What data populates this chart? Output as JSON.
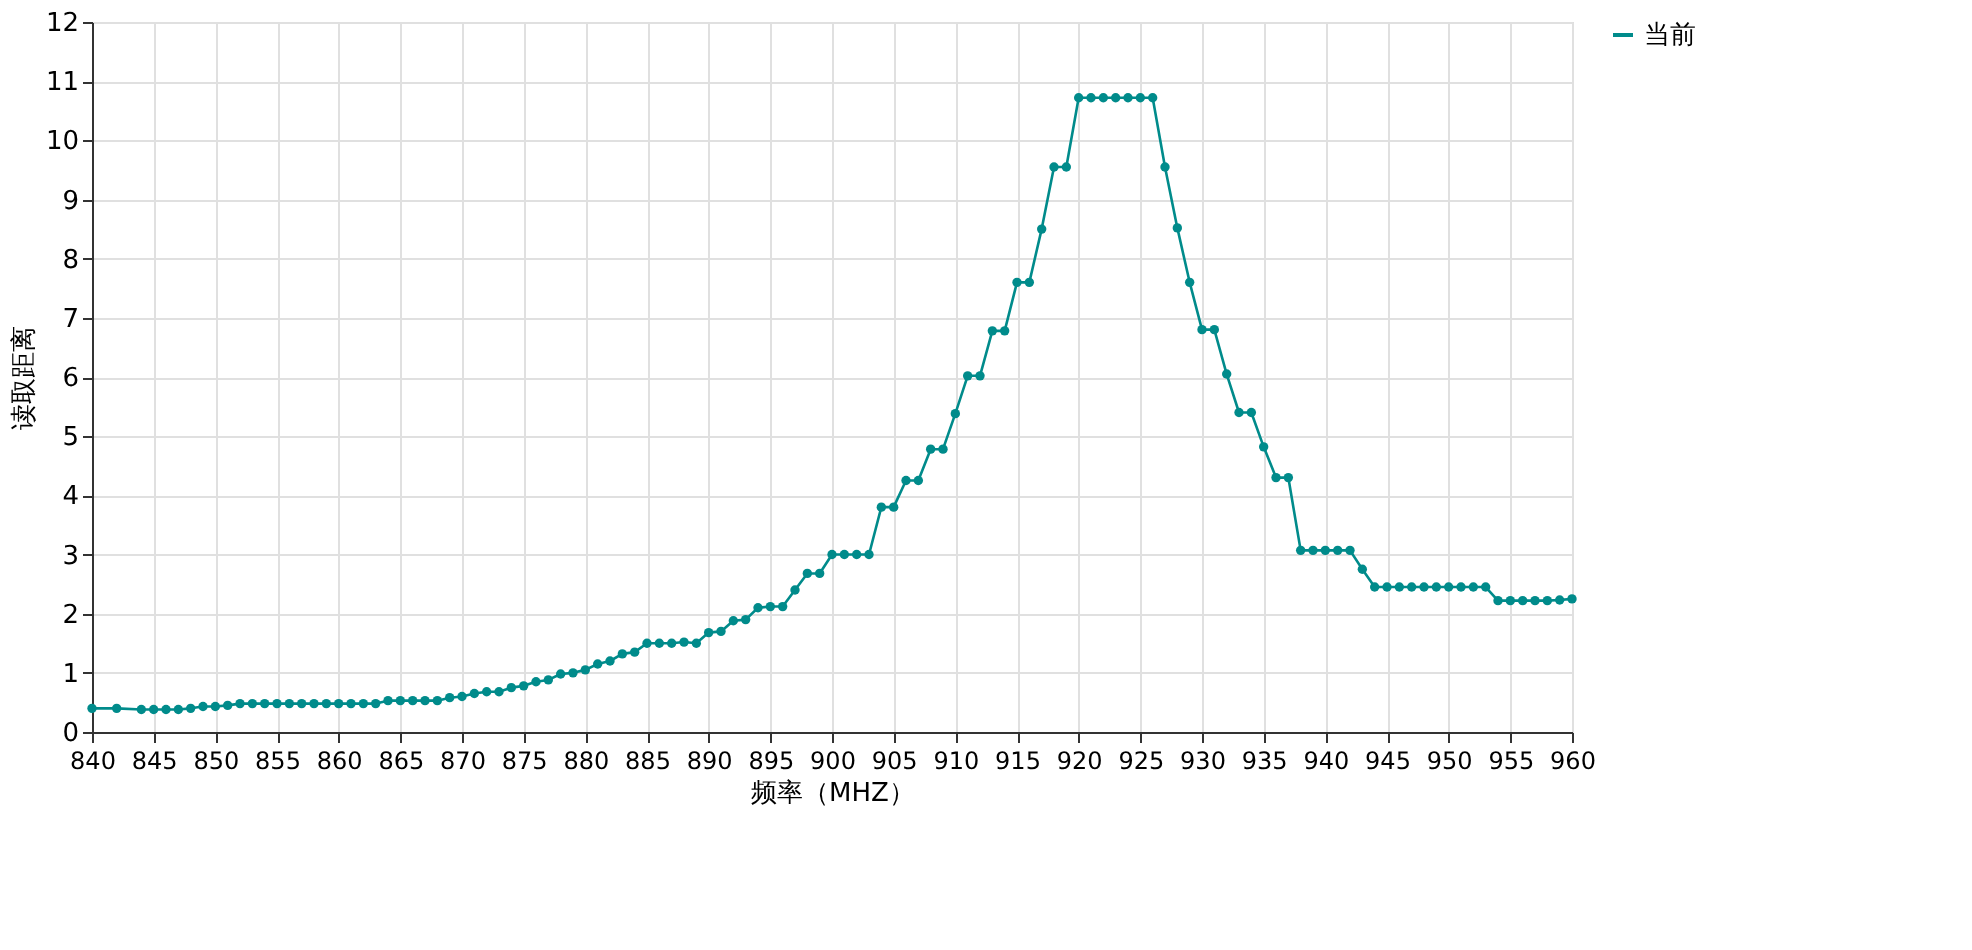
{
  "chart_data": {
    "type": "line",
    "xlabel": "频率（MHZ）",
    "ylabel": "读取距离",
    "x": [
      840,
      842,
      844,
      845,
      846,
      847,
      848,
      849,
      850,
      851,
      852,
      853,
      854,
      855,
      856,
      857,
      858,
      859,
      860,
      861,
      862,
      863,
      864,
      865,
      866,
      867,
      868,
      869,
      870,
      871,
      872,
      873,
      874,
      875,
      876,
      877,
      878,
      879,
      880,
      881,
      882,
      883,
      884,
      885,
      886,
      887,
      888,
      889,
      890,
      891,
      892,
      893,
      894,
      895,
      896,
      897,
      898,
      899,
      900,
      901,
      902,
      903,
      904,
      905,
      906,
      907,
      908,
      909,
      910,
      911,
      912,
      913,
      914,
      915,
      916,
      917,
      918,
      919,
      920,
      921,
      922,
      923,
      924,
      925,
      926,
      927,
      928,
      929,
      930,
      931,
      932,
      933,
      934,
      935,
      936,
      937,
      938,
      939,
      940,
      941,
      942,
      943,
      944,
      945,
      946,
      947,
      948,
      949,
      950,
      951,
      952,
      953,
      954,
      955,
      956,
      957,
      958,
      959,
      960
    ],
    "series": [
      {
        "name": "当前",
        "color": "#008b8b",
        "values": [
          0.4,
          0.4,
          0.38,
          0.38,
          0.38,
          0.38,
          0.4,
          0.43,
          0.43,
          0.45,
          0.48,
          0.48,
          0.48,
          0.48,
          0.48,
          0.48,
          0.48,
          0.48,
          0.48,
          0.48,
          0.48,
          0.48,
          0.53,
          0.53,
          0.53,
          0.53,
          0.53,
          0.58,
          0.6,
          0.65,
          0.68,
          0.68,
          0.75,
          0.78,
          0.85,
          0.88,
          0.98,
          1.0,
          1.05,
          1.15,
          1.2,
          1.32,
          1.35,
          1.5,
          1.5,
          1.5,
          1.52,
          1.5,
          1.68,
          1.7,
          1.88,
          1.9,
          2.1,
          2.12,
          2.12,
          2.4,
          2.68,
          2.68,
          3.0,
          3.0,
          3.0,
          3.0,
          3.8,
          3.8,
          4.25,
          4.25,
          4.78,
          4.78,
          5.38,
          6.02,
          6.02,
          6.78,
          6.78,
          7.6,
          7.6,
          8.5,
          9.55,
          9.55,
          10.72,
          10.72,
          10.72,
          10.72,
          10.72,
          10.72,
          10.72,
          9.55,
          8.52,
          7.6,
          6.8,
          6.8,
          6.05,
          5.4,
          5.4,
          4.82,
          4.3,
          4.3,
          3.07,
          3.07,
          3.07,
          3.07,
          3.07,
          2.75,
          2.45,
          2.45,
          2.45,
          2.45,
          2.45,
          2.45,
          2.45,
          2.45,
          2.45,
          2.45,
          2.22,
          2.22,
          2.22,
          2.22,
          2.22,
          2.23,
          2.25
        ]
      }
    ],
    "xlim": [
      840,
      960
    ],
    "xticks": [
      840,
      845,
      850,
      855,
      860,
      865,
      870,
      875,
      880,
      885,
      890,
      895,
      900,
      905,
      910,
      915,
      920,
      925,
      930,
      935,
      940,
      945,
      950,
      955,
      960
    ],
    "ylim": [
      0,
      12
    ],
    "yticks": [
      0,
      1,
      2,
      3,
      4,
      5,
      6,
      7,
      8,
      9,
      10,
      11,
      12
    ],
    "grid": true,
    "legend": "top right",
    "marker": "circle",
    "line_style": "solid"
  }
}
